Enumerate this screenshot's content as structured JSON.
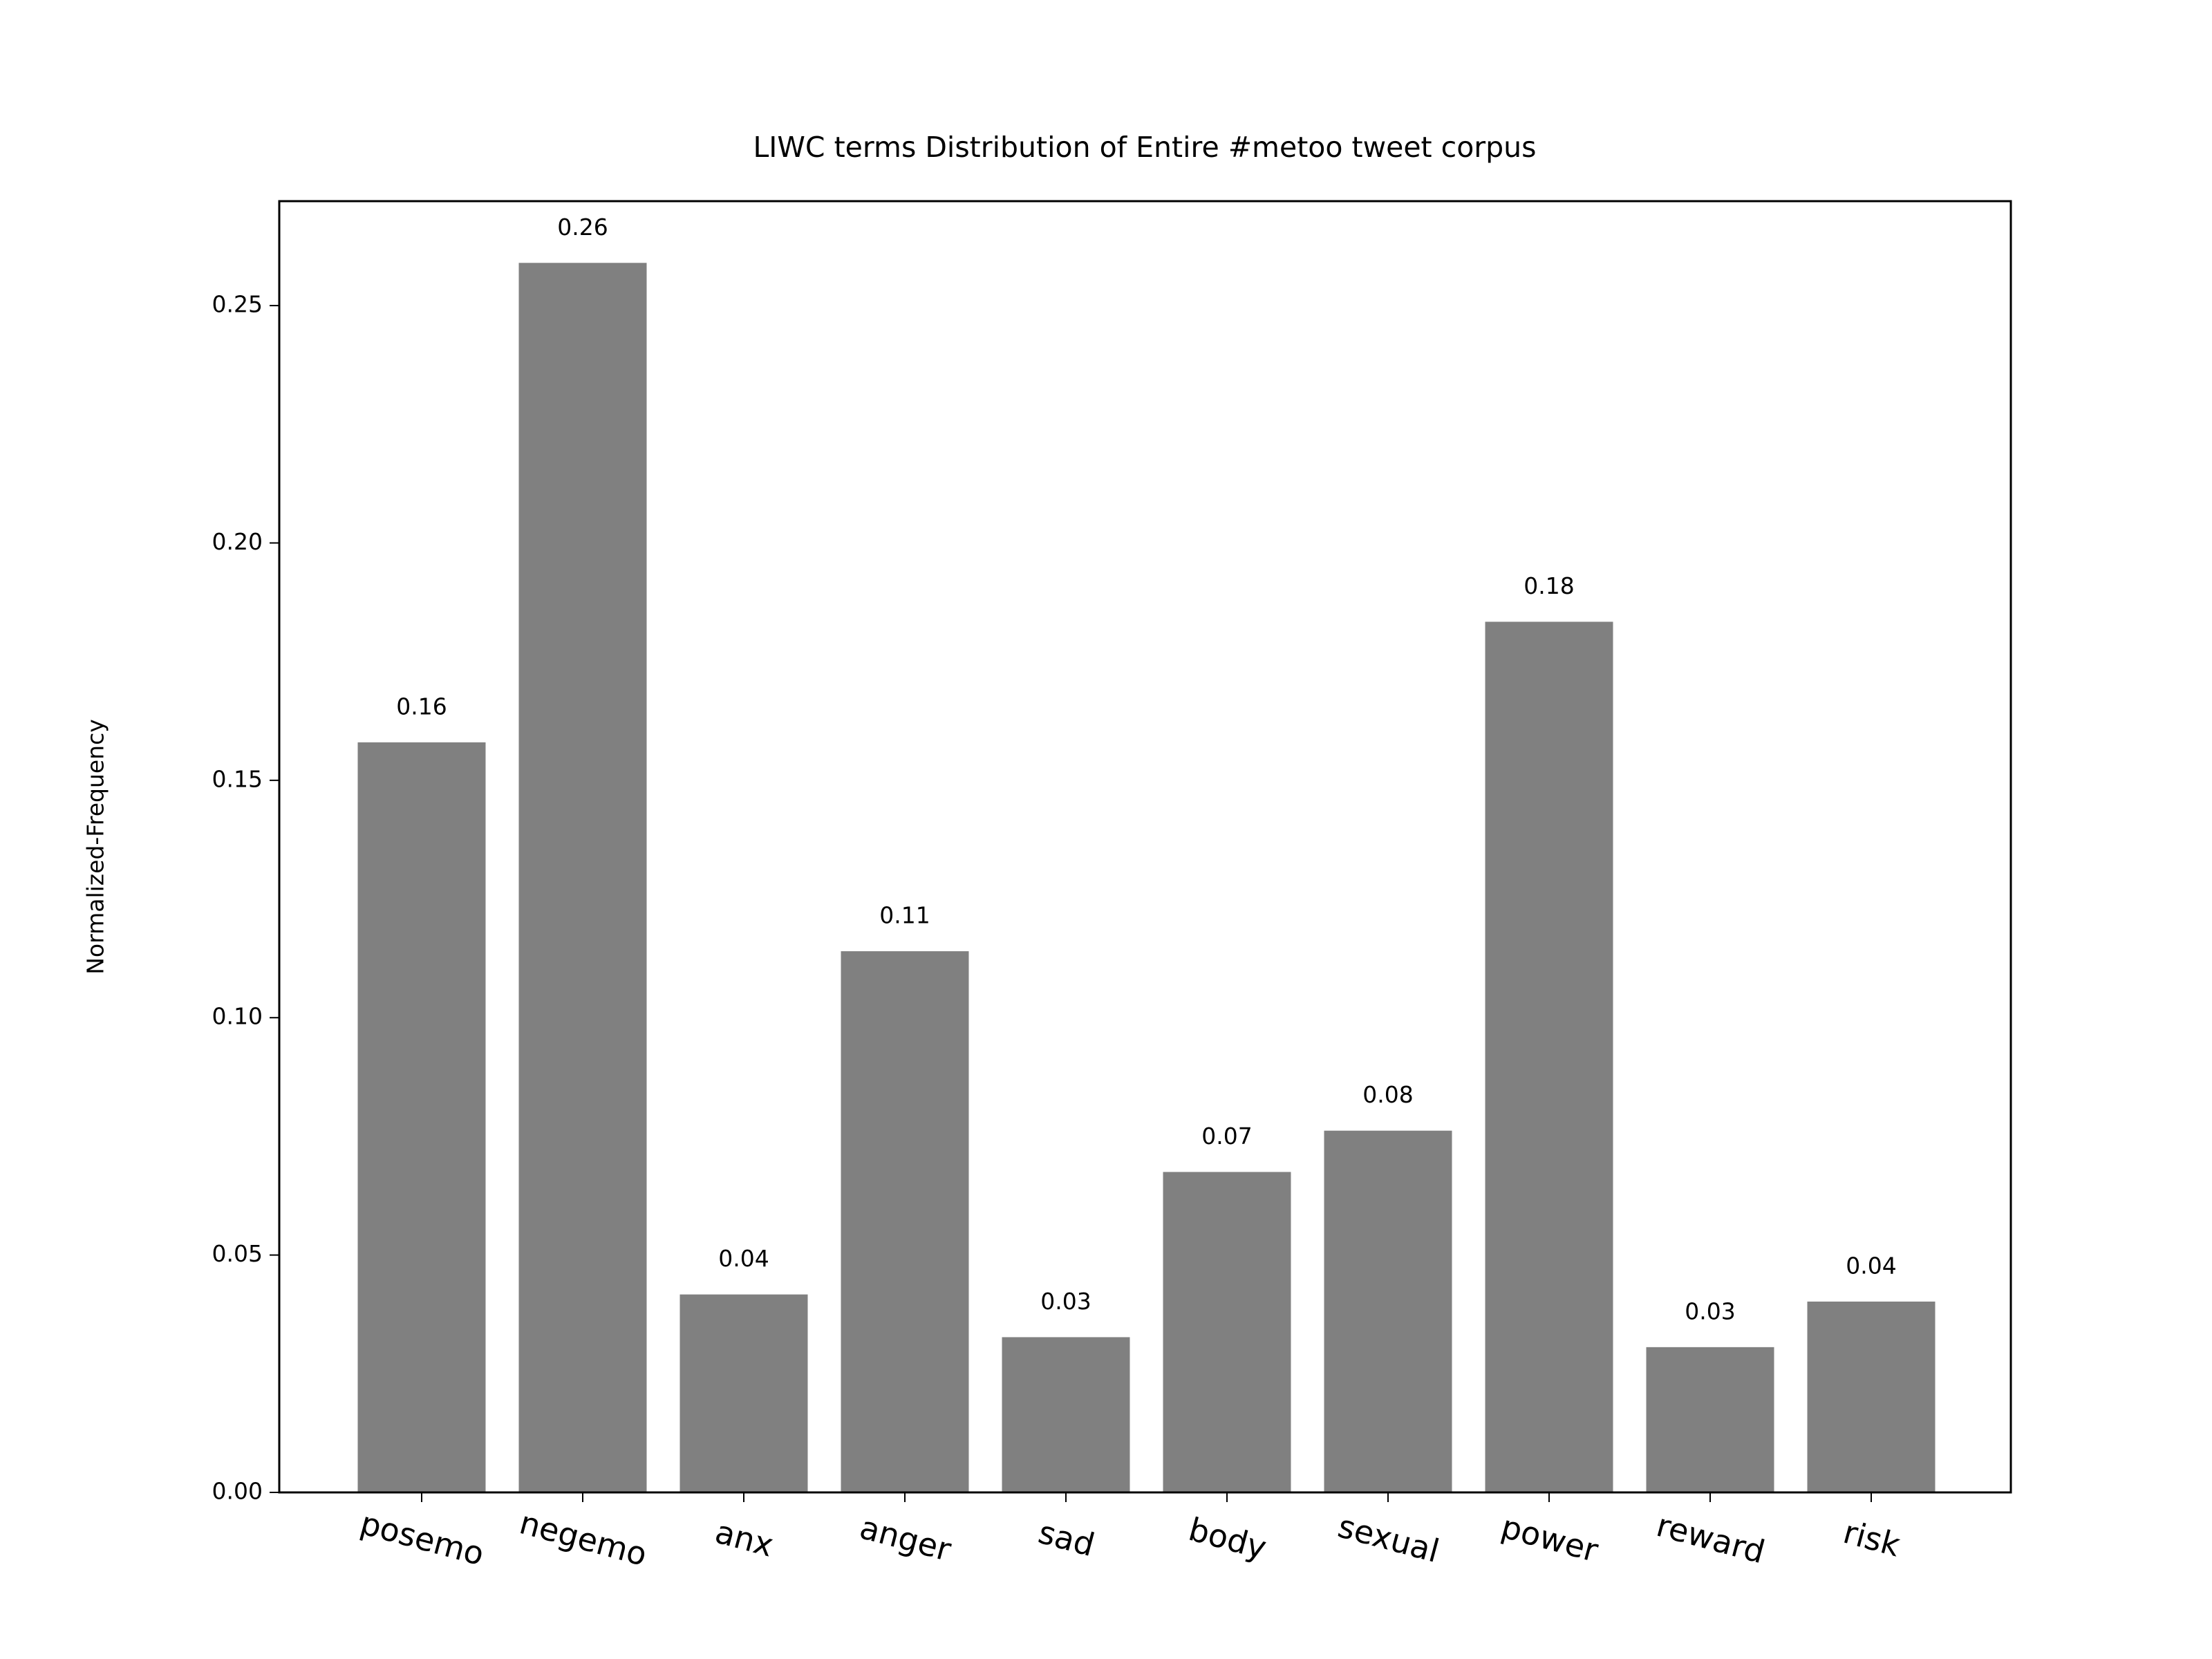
{
  "chart_data": {
    "type": "bar",
    "title": "LIWC terms Distribution of Entire #metoo tweet corpus",
    "y_label": "Normalized-Frequency",
    "categories": [
      "posemo",
      "negemo",
      "anx",
      "anger",
      "sad",
      "body",
      "sexual",
      "power",
      "reward",
      "risk"
    ],
    "values": [
      0.158,
      0.259,
      0.0417,
      0.114,
      0.0327,
      0.0675,
      0.0762,
      0.1834,
      0.0306,
      0.0402
    ],
    "value_labels": [
      "0.16",
      "0.26",
      "0.04",
      "0.11",
      "0.03",
      "0.07",
      "0.08",
      "0.18",
      "0.03",
      "0.04"
    ],
    "color": "#808080",
    "ylim": [
      0,
      0.272
    ],
    "yticks": [
      {
        "value": 0,
        "label": "0.00"
      },
      0.05,
      {
        "value": 0.1,
        "label": "0.10"
      },
      0.15,
      {
        "value": 0.2,
        "label": "0.20"
      },
      0.25
    ],
    "grid": false
  }
}
